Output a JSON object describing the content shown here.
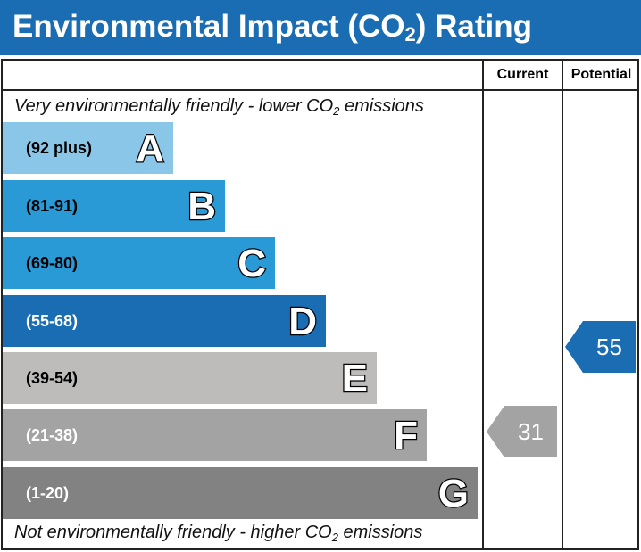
{
  "header": {
    "title_pre": "Environmental Impact (CO",
    "title_sub": "2",
    "title_post": ") Rating"
  },
  "columns": {
    "current": "Current",
    "potential": "Potential"
  },
  "top_caption": {
    "pre": "Very environmentally friendly - lower CO",
    "sub": "2",
    "post": " emissions"
  },
  "bottom_caption": {
    "pre": "Not environmentally friendly - higher CO",
    "sub": "2",
    "post": " emissions"
  },
  "colors": {
    "header": "#1a6db3",
    "A": "#8ac6e8",
    "B": "#2a9ad6",
    "C": "#2a9ad6",
    "D": "#1a6db3",
    "E": "#bdbcbb",
    "F": "#a3a3a3",
    "G": "#828282",
    "current_pointer": "#a3a3a3",
    "potential_pointer": "#1a6db3"
  },
  "chart_data": {
    "type": "bar",
    "categories": [
      "A",
      "B",
      "C",
      "D",
      "E",
      "F",
      "G"
    ],
    "ranges": [
      "(92 plus)",
      "(81-91)",
      "(69-80)",
      "(55-68)",
      "(39-54)",
      "(21-38)",
      "(1-20)"
    ],
    "current": {
      "value": 31,
      "band": "F"
    },
    "potential": {
      "value": 55,
      "band": "D"
    }
  },
  "current_value": "31",
  "potential_value": "55"
}
